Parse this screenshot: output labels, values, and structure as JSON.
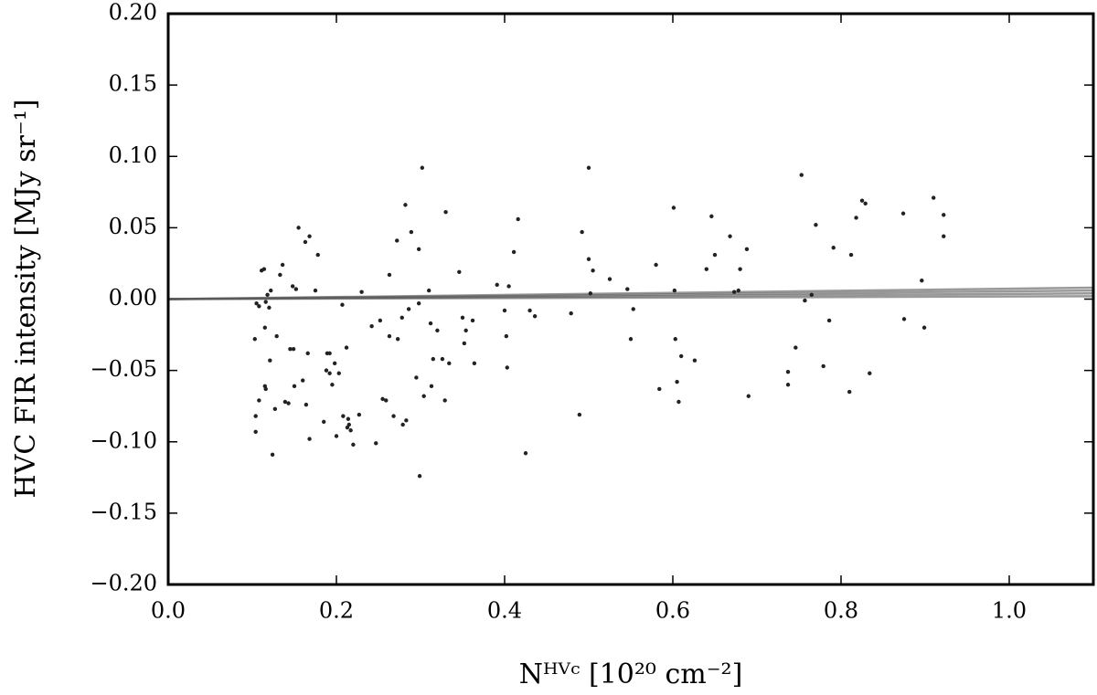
{
  "chart_data": {
    "type": "scatter",
    "xlabel": "Nᴴⱽᶜ [10²⁰ cm⁻²]",
    "ylabel": "HVC FIR intensity [MJy sr⁻¹]",
    "xlim": [
      0,
      1.1
    ],
    "ylim": [
      -0.2,
      0.2
    ],
    "xticks": [
      {
        "value": 0,
        "label": "0.0"
      },
      0.2,
      0.4,
      0.6,
      0.8,
      {
        "value": 1,
        "label": "1.0"
      }
    ],
    "yticks": [
      {
        "value": -0.2,
        "label": "−0.20"
      },
      {
        "value": -0.15,
        "label": "−0.15"
      },
      {
        "value": -0.1,
        "label": "−0.10"
      },
      {
        "value": -0.05,
        "label": "−0.05"
      },
      {
        "value": 0,
        "label": "0.00"
      },
      {
        "value": 0.05,
        "label": "0.05"
      },
      {
        "value": 0.1,
        "label": "0.10"
      },
      {
        "value": 0.15,
        "label": "0.15"
      },
      {
        "value": 0.2,
        "label": "0.20"
      }
    ],
    "grid": false,
    "series": [
      {
        "color": "#222222",
        "x": [
          0.103,
          0.105,
          0.108,
          0.104,
          0.104,
          0.108,
          0.114,
          0.111,
          0.116,
          0.118,
          0.12,
          0.115,
          0.115,
          0.116,
          0.122,
          0.121,
          0.124,
          0.127,
          0.129,
          0.133,
          0.136,
          0.139,
          0.143,
          0.145,
          0.149,
          0.148,
          0.152,
          0.15,
          0.155,
          0.16,
          0.163,
          0.166,
          0.168,
          0.168,
          0.175,
          0.178,
          0.164,
          0.185,
          0.188,
          0.189,
          0.192,
          0.192,
          0.195,
          0.198,
          0.2,
          0.203,
          0.207,
          0.208,
          0.212,
          0.213,
          0.214,
          0.215,
          0.217,
          0.22,
          0.227,
          0.23,
          0.242,
          0.247,
          0.252,
          0.255,
          0.259,
          0.263,
          0.263,
          0.268,
          0.272,
          0.273,
          0.278,
          0.279,
          0.282,
          0.283,
          0.286,
          0.289,
          0.295,
          0.298,
          0.298,
          0.299,
          0.302,
          0.304,
          0.31,
          0.312,
          0.313,
          0.315,
          0.32,
          0.326,
          0.329,
          0.33,
          0.334,
          0.346,
          0.35,
          0.352,
          0.354,
          0.362,
          0.364,
          0.391,
          0.4,
          0.402,
          0.403,
          0.405,
          0.411,
          0.416,
          0.425,
          0.43,
          0.436,
          0.479,
          0.489,
          0.492,
          0.5,
          0.5,
          0.502,
          0.505,
          0.525,
          0.546,
          0.55,
          0.553,
          0.58,
          0.584,
          0.601,
          0.602,
          0.603,
          0.605,
          0.607,
          0.61,
          0.626,
          0.64,
          0.646,
          0.65,
          0.668,
          0.673,
          0.678,
          0.68,
          0.688,
          0.69,
          0.737,
          0.737,
          0.746,
          0.753,
          0.757,
          0.765,
          0.77,
          0.779,
          0.786,
          0.791,
          0.81,
          0.812,
          0.818,
          0.825,
          0.829,
          0.834,
          0.874,
          0.875,
          0.896,
          0.899,
          0.91,
          0.922,
          0.922
        ],
        "values": [
          -0.028,
          -0.003,
          -0.005,
          -0.082,
          -0.093,
          -0.071,
          0.021,
          0.02,
          -0.002,
          0.003,
          -0.006,
          -0.02,
          -0.061,
          -0.063,
          0.006,
          -0.043,
          -0.109,
          -0.077,
          -0.026,
          0.017,
          0.024,
          -0.072,
          -0.073,
          -0.035,
          -0.035,
          0.009,
          0.007,
          -0.061,
          0.05,
          -0.057,
          0.04,
          -0.038,
          0.044,
          -0.098,
          0.006,
          0.031,
          -0.074,
          -0.086,
          -0.05,
          -0.038,
          -0.038,
          -0.052,
          -0.06,
          -0.045,
          -0.096,
          -0.052,
          -0.004,
          -0.082,
          -0.034,
          -0.09,
          -0.084,
          -0.088,
          -0.092,
          -0.102,
          -0.081,
          0.005,
          -0.019,
          -0.101,
          -0.015,
          -0.07,
          -0.071,
          0.017,
          -0.026,
          -0.082,
          0.041,
          -0.028,
          -0.013,
          -0.088,
          0.066,
          -0.085,
          -0.007,
          0.047,
          -0.055,
          0.035,
          -0.003,
          -0.124,
          0.092,
          -0.068,
          0.006,
          -0.017,
          -0.061,
          -0.042,
          -0.022,
          -0.042,
          -0.071,
          0.061,
          -0.045,
          0.019,
          -0.013,
          -0.031,
          -0.022,
          -0.015,
          -0.045,
          0.01,
          -0.008,
          -0.026,
          -0.048,
          0.009,
          0.033,
          0.056,
          -0.108,
          -0.008,
          -0.012,
          -0.01,
          -0.081,
          0.047,
          0.092,
          0.028,
          0.004,
          0.02,
          0.014,
          0.007,
          -0.028,
          -0.007,
          0.024,
          -0.063,
          0.064,
          0.006,
          -0.028,
          -0.058,
          -0.072,
          -0.04,
          -0.043,
          0.021,
          0.058,
          0.031,
          0.044,
          0.005,
          0.006,
          0.021,
          0.035,
          -0.068,
          -0.051,
          -0.06,
          -0.034,
          0.087,
          -0.001,
          0.003,
          0.052,
          -0.047,
          -0.015,
          0.036,
          -0.065,
          0.031,
          0.057,
          0.069,
          0.067,
          -0.052,
          0.06,
          -0.014,
          0.013,
          -0.02,
          0.071,
          0.059,
          0.044
        ]
      }
    ],
    "lines": [
      {
        "color": "#555555",
        "x": [
          0,
          1.1
        ],
        "values": [
          0,
          0.002
        ]
      },
      {
        "color": "#555555",
        "x": [
          0,
          1.1
        ],
        "values": [
          0,
          0.004
        ]
      },
      {
        "color": "#555555",
        "x": [
          0,
          1.1
        ],
        "values": [
          0,
          0.006
        ]
      },
      {
        "color": "#555555",
        "x": [
          0,
          1.1
        ],
        "values": [
          0,
          0.008
        ]
      }
    ]
  }
}
